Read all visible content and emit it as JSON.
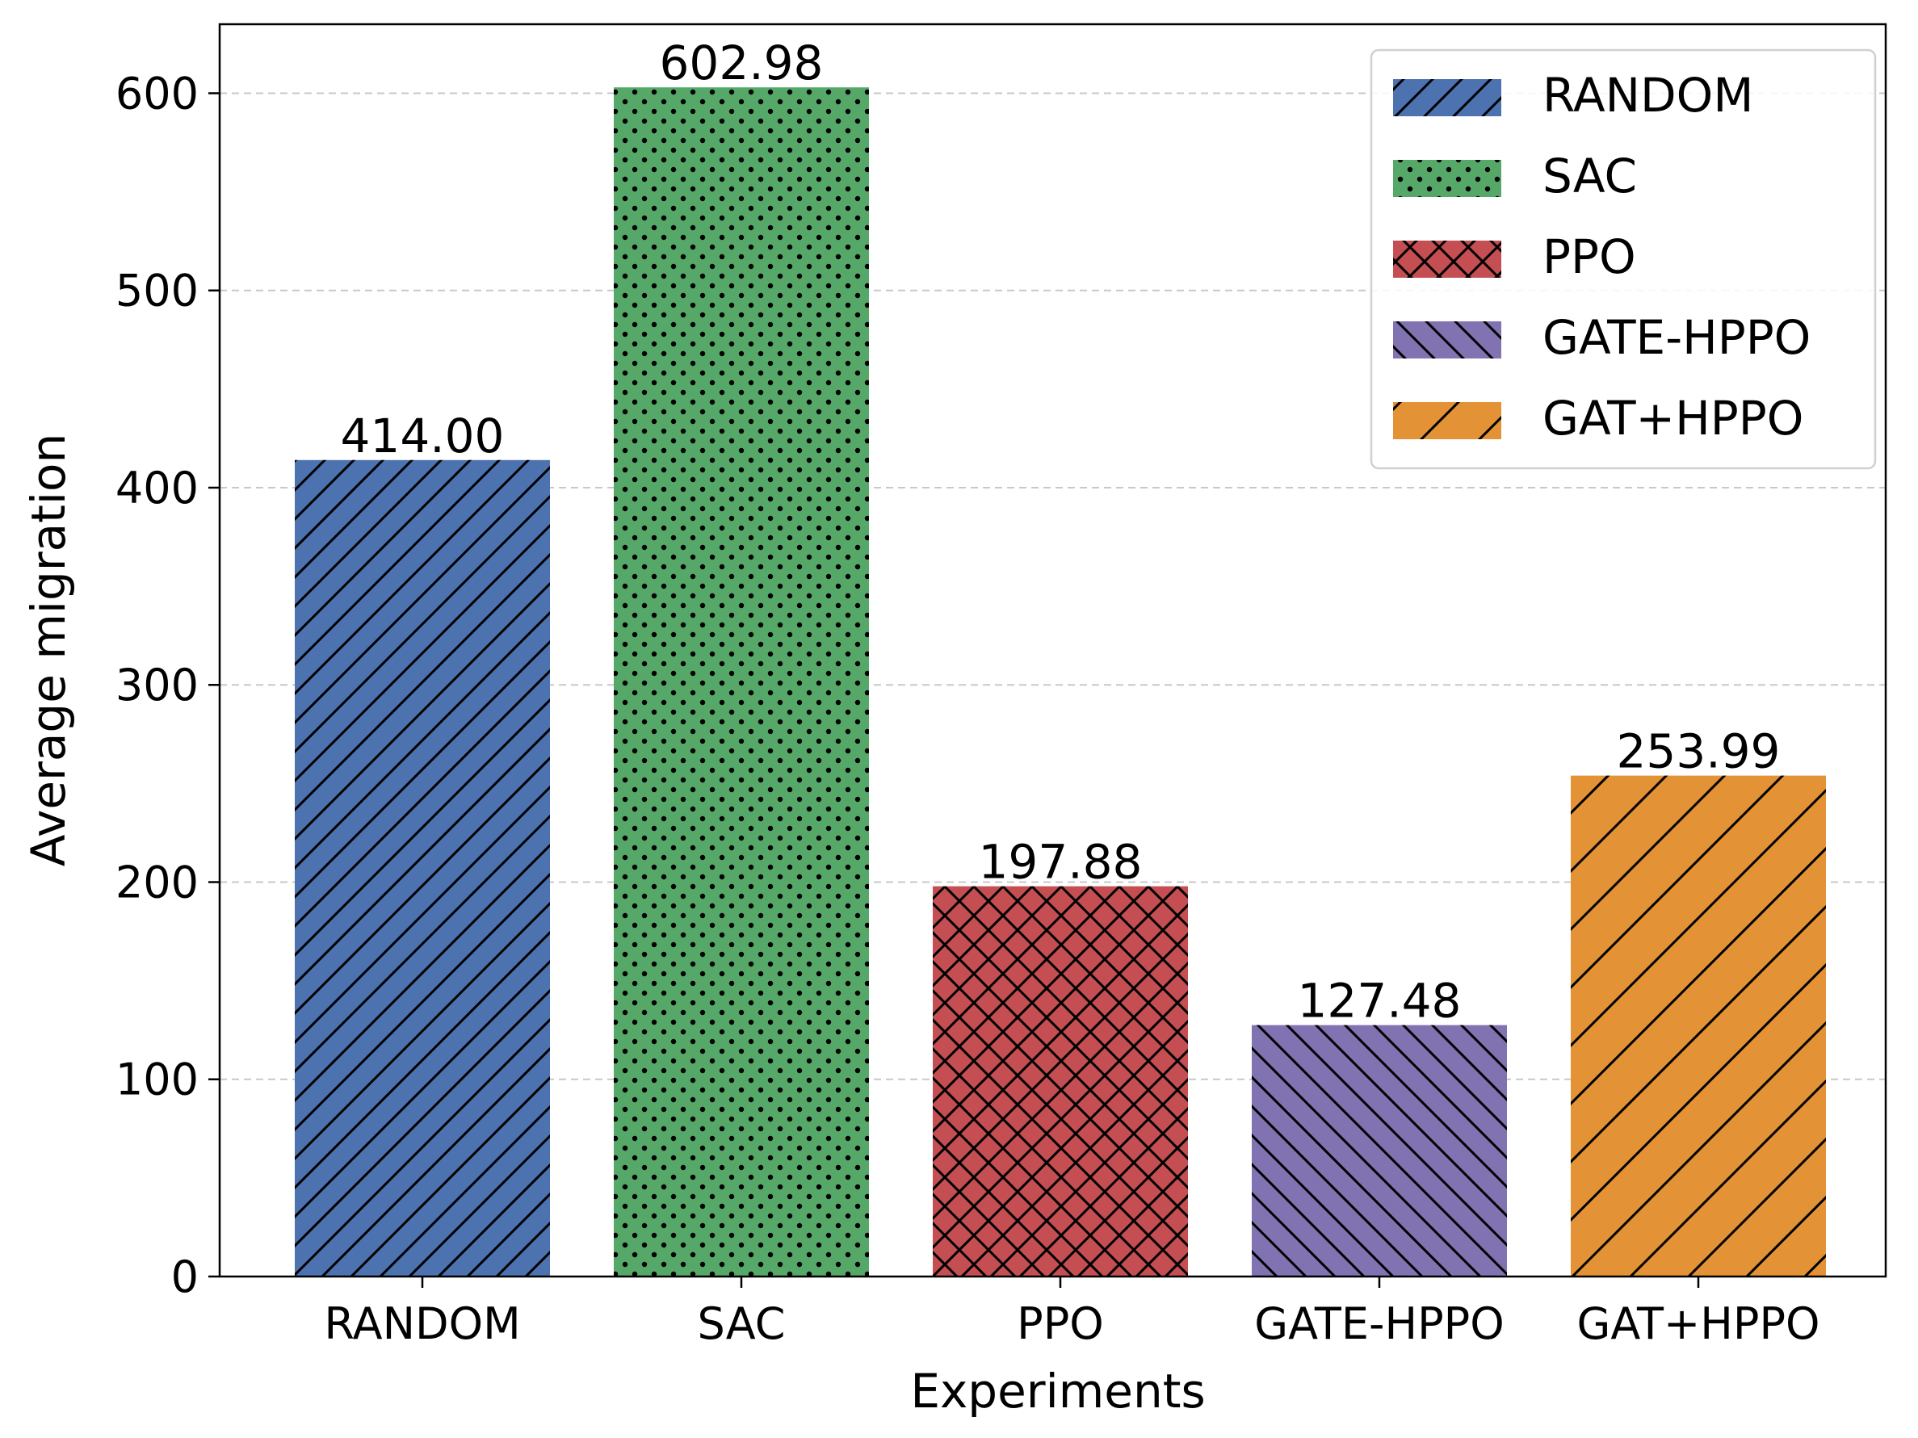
{
  "chart_data": {
    "type": "bar",
    "title": "",
    "xlabel": "Experiments",
    "ylabel": "Average migration",
    "ylim": [
      0,
      635
    ],
    "yticks": [
      0,
      100,
      200,
      300,
      400,
      500,
      600
    ],
    "grid": "horizontal-dashed",
    "legend_position": "top-right",
    "categories": [
      "RANDOM",
      "SAC",
      "PPO",
      "GATE-HPPO",
      "GAT+HPPO"
    ],
    "values": [
      414.0,
      602.98,
      197.88,
      127.48,
      253.99
    ],
    "value_labels": [
      "414.00",
      "602.98",
      "197.88",
      "127.48",
      "253.99"
    ],
    "series": [
      {
        "name": "RANDOM",
        "value": 414.0,
        "color": "#4c72b0",
        "hatch": "forward-diagonal"
      },
      {
        "name": "SAC",
        "value": 602.98,
        "color": "#55a868",
        "hatch": "dots"
      },
      {
        "name": "PPO",
        "value": 197.88,
        "color": "#c44e52",
        "hatch": "crosshatch"
      },
      {
        "name": "GATE-HPPO",
        "value": 127.48,
        "color": "#8172b2",
        "hatch": "backward-diagonal"
      },
      {
        "name": "GAT+HPPO",
        "value": 253.99,
        "color": "#e39235",
        "hatch": "sparse-forward-diagonal"
      }
    ],
    "legend": [
      "RANDOM",
      "SAC",
      "PPO",
      "GATE-HPPO",
      "GAT+HPPO"
    ]
  }
}
